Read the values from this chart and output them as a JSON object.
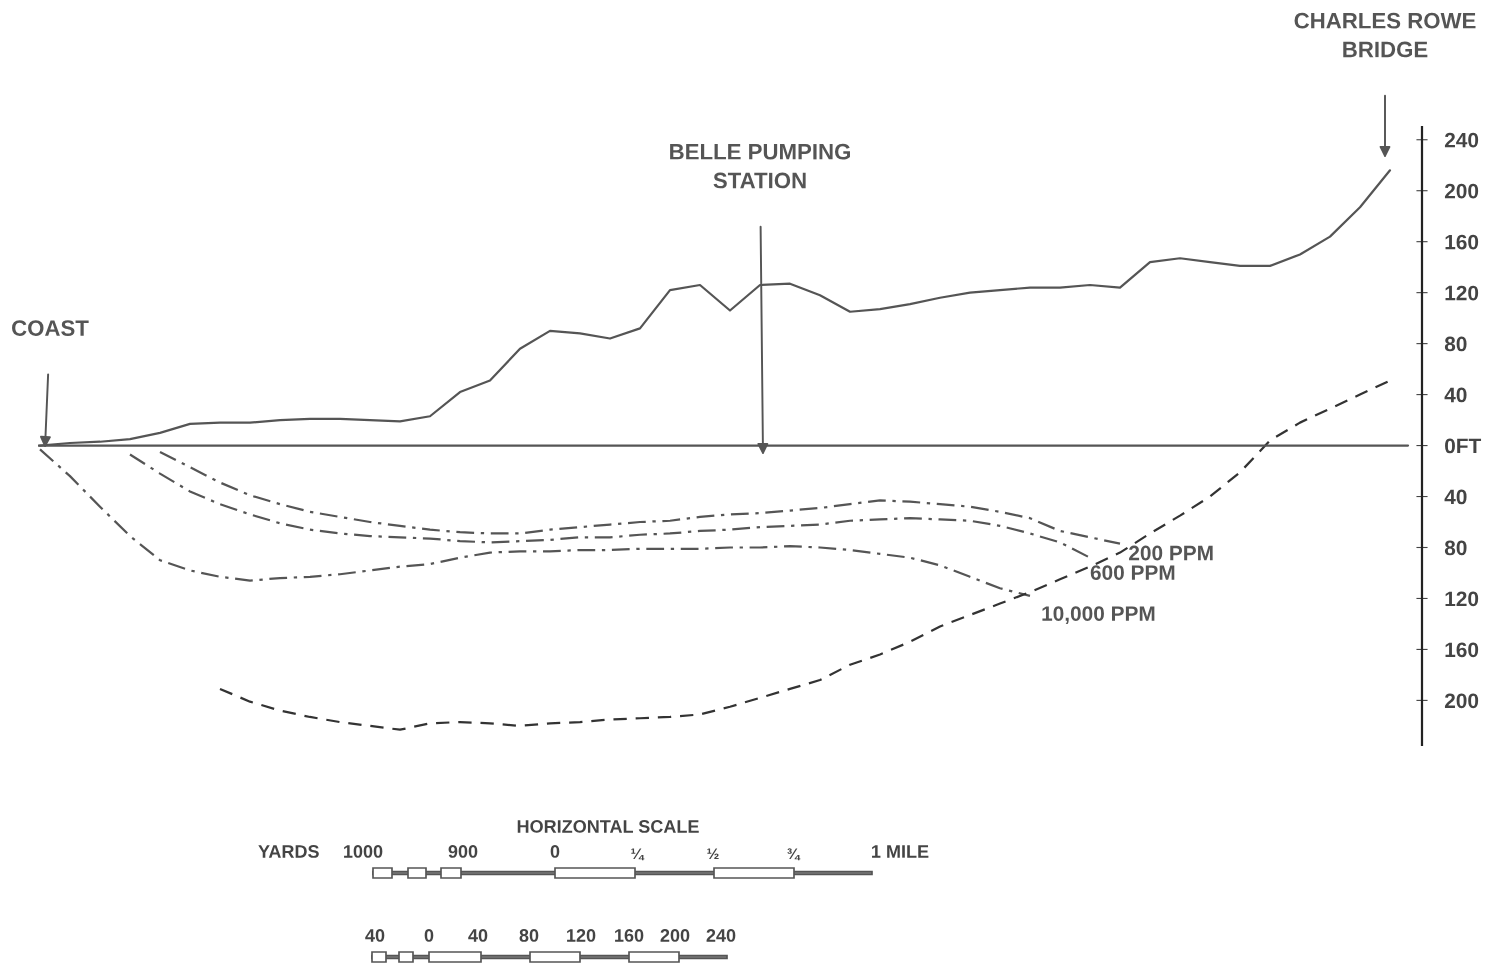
{
  "chart_data": {
    "type": "line",
    "categories": [
      null,
      null,
      null,
      null,
      null,
      null,
      null,
      null,
      null,
      null,
      null,
      null,
      null,
      null,
      null,
      null,
      null,
      null,
      null,
      null,
      null,
      null,
      null,
      null,
      null,
      null,
      null,
      null,
      null,
      null,
      null,
      null,
      null,
      null,
      null,
      null,
      null,
      null,
      null,
      null,
      null,
      null,
      null,
      null,
      null,
      null
    ],
    "series": [
      {
        "color": "#555555",
        "line_style": "solid",
        "values": [
          0,
          2,
          3,
          5,
          10,
          17,
          18,
          18,
          20,
          21,
          21,
          20,
          19,
          23,
          42,
          51,
          76,
          90,
          88,
          84,
          92,
          122,
          126,
          106,
          126,
          127,
          118,
          105,
          107,
          111,
          116,
          120,
          122,
          124,
          124,
          126,
          124,
          144,
          147,
          144,
          141,
          141,
          150,
          164,
          187,
          216
        ]
      },
      {
        "name": "10,000 PPM",
        "color": "#555555",
        "line_style": "dashdot",
        "values": [
          -3,
          -24,
          -48,
          -71,
          -90,
          -98,
          -103,
          -106,
          -104,
          -103,
          -101,
          -98,
          -95,
          -93,
          -88,
          -84,
          -83,
          -83,
          -82,
          -82,
          -81,
          -81,
          -81,
          -80,
          -80,
          -79,
          -80,
          -82,
          -85,
          -88,
          -94,
          -103,
          -112,
          -118,
          null,
          null,
          null,
          null,
          null,
          null,
          null,
          null,
          null,
          null,
          null,
          null
        ]
      },
      {
        "name": "600 PPM",
        "color": "#555555",
        "line_style": "dashdot",
        "values": [
          null,
          null,
          null,
          -7,
          -22,
          -36,
          -46,
          -54,
          -61,
          -66,
          -69,
          -71,
          -72,
          -73,
          -75,
          -76,
          -75,
          -74,
          -72,
          -72,
          -70,
          -69,
          -67,
          -66,
          -64,
          -63,
          -62,
          -59,
          -58,
          -57,
          -58,
          -59,
          -63,
          -69,
          -76,
          -88,
          null,
          null,
          null,
          null,
          null,
          null,
          null,
          null,
          null,
          null
        ]
      },
      {
        "name": "200 PPM",
        "color": "#555555",
        "line_style": "dashdot",
        "values": [
          null,
          null,
          null,
          null,
          -5,
          -17,
          -29,
          -39,
          -46,
          -52,
          -56,
          -60,
          -63,
          -66,
          -68,
          -69,
          -69,
          -66,
          -64,
          -62,
          -60,
          -59,
          -56,
          -54,
          -53,
          -51,
          -49,
          -46,
          -43,
          -44,
          -46,
          -48,
          -52,
          -57,
          -67,
          -72,
          -77,
          null,
          null,
          null,
          null,
          null,
          null,
          null,
          null,
          null
        ]
      },
      {
        "color": "#333333",
        "line_style": "dashed",
        "values": [
          null,
          null,
          null,
          null,
          null,
          null,
          -191,
          -201,
          -208,
          -213,
          -217,
          -220,
          -223,
          -218,
          -217,
          -218,
          -220,
          -218,
          -217,
          -215,
          -214,
          -213,
          -211,
          -205,
          -198,
          -191,
          -184,
          -172,
          -164,
          -154,
          -142,
          -133,
          -124,
          -115,
          -105,
          -95,
          -84,
          -69,
          -55,
          -40,
          -21,
          4,
          18,
          29,
          40,
          51
        ]
      }
    ],
    "ylim": [
      -235,
      250
    ],
    "yticks": [
      240,
      200,
      160,
      120,
      80,
      40,
      {
        "value": 0,
        "label": "0FT"
      },
      {
        "value": -40,
        "label": "40"
      },
      {
        "value": -80,
        "label": "80"
      },
      {
        "value": -120,
        "label": "120"
      },
      {
        "value": -160,
        "label": "160"
      },
      {
        "value": -200,
        "label": "200"
      }
    ],
    "tick_labels": "y",
    "grid": false,
    "legend": false,
    "ref_lines": [
      {
        "axis": "y",
        "value": 0,
        "color": "#555555"
      }
    ],
    "annotations": [
      "COAST",
      "BELLE PUMPING\nSTATION",
      "CHARLES ROWE\nBRIDGE",
      "HORIZONTAL SCALE",
      "YARDS",
      "1000",
      "900",
      "0",
      "¼",
      "½",
      "¾",
      "1 MILE",
      "40",
      "0",
      "40",
      "80",
      "120",
      "160",
      "200",
      "240"
    ]
  }
}
